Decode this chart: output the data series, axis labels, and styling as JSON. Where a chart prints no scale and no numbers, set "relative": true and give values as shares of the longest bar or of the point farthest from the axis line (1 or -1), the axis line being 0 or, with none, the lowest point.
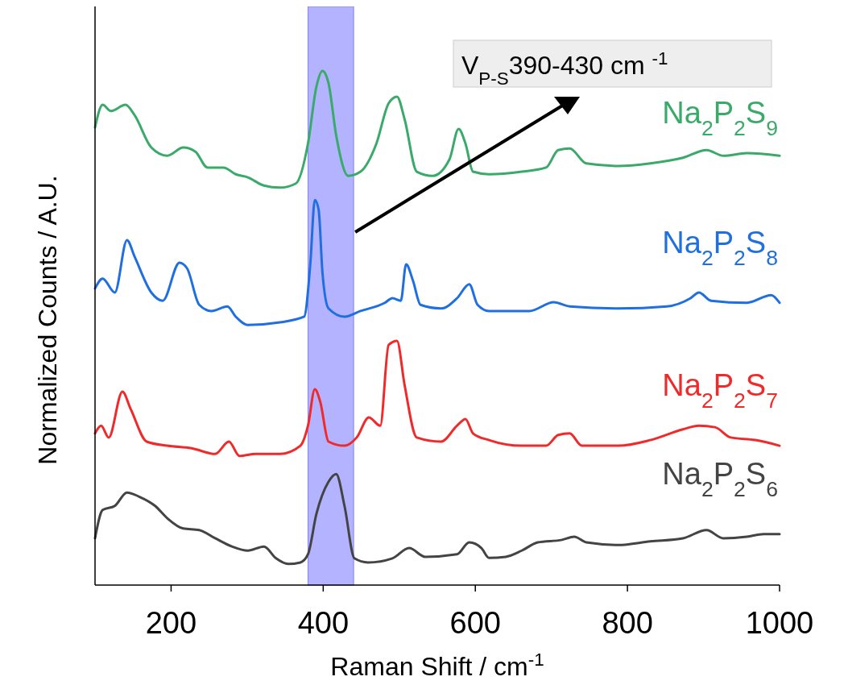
{
  "chart_data": {
    "type": "line",
    "relative": true,
    "xlabel": "Raman Shift / cm$^{-1}$",
    "ylabel": "Normalized Counts / A.U.",
    "xlim": [
      100,
      1000
    ],
    "xticks": [
      200,
      400,
      600,
      800,
      1000
    ],
    "grid": false,
    "tick_labels": "x",
    "bands": [
      {
        "axis": "x",
        "from": 380,
        "to": 440,
        "label": "V$_{P-S}$390-430 cm $^{-1}$",
        "color": "#8080ff"
      }
    ],
    "series": [
      {
        "name": "Na$_{2}$P$_{2}$S$_{9}$",
        "color": "#3aaa6a",
        "x": [
          100,
          110,
          121,
          140,
          152,
          174,
          195,
          216,
          232,
          248,
          269,
          285,
          301,
          322,
          343,
          364,
          380,
          391,
          399,
          407,
          417,
          433,
          449,
          470,
          486,
          497,
          507,
          523,
          544,
          566,
          578,
          587,
          597,
          618,
          661,
          693,
          709,
          724,
          746,
          788,
          830,
          873,
          904,
          926,
          957,
          1000
        ],
        "values": [
          0.89,
          0.934,
          0.922,
          0.934,
          0.914,
          0.851,
          0.835,
          0.851,
          0.843,
          0.812,
          0.812,
          0.799,
          0.793,
          0.777,
          0.773,
          0.781,
          0.859,
          0.969,
          1.0,
          0.976,
          0.875,
          0.796,
          0.804,
          0.859,
          0.937,
          0.95,
          0.906,
          0.804,
          0.796,
          0.828,
          0.887,
          0.859,
          0.804,
          0.799,
          0.804,
          0.812,
          0.846,
          0.849,
          0.82,
          0.815,
          0.82,
          0.831,
          0.846,
          0.835,
          0.84,
          0.835
        ]
      },
      {
        "name": "Na$_{2}$P$_{2}$S$_{8}$",
        "color": "#1f6fe0",
        "x": [
          100,
          110,
          126,
          142,
          152,
          174,
          189,
          211,
          221,
          237,
          253,
          274,
          285,
          301,
          343,
          375,
          383,
          389,
          394,
          399,
          407,
          428,
          449,
          481,
          491,
          502,
          509,
          518,
          528,
          555,
          576,
          592,
          603,
          618,
          671,
          703,
          724,
          788,
          852,
          883,
          894,
          910,
          957,
          989,
          1000
        ],
        "values": [
          0.577,
          0.596,
          0.569,
          0.671,
          0.639,
          0.569,
          0.553,
          0.627,
          0.616,
          0.545,
          0.533,
          0.542,
          0.522,
          0.506,
          0.511,
          0.522,
          0.624,
          0.749,
          0.73,
          0.608,
          0.538,
          0.522,
          0.533,
          0.549,
          0.558,
          0.553,
          0.624,
          0.592,
          0.545,
          0.538,
          0.558,
          0.585,
          0.545,
          0.533,
          0.533,
          0.55,
          0.542,
          0.538,
          0.542,
          0.558,
          0.569,
          0.553,
          0.549,
          0.564,
          0.549
        ]
      },
      {
        "name": "Na$_{2}$P$_{2}$S$_{7}$",
        "color": "#f02a2a",
        "x": [
          100,
          108,
          118,
          136,
          147,
          168,
          195,
          227,
          258,
          276,
          290,
          311,
          343,
          370,
          380,
          389,
          396,
          407,
          428,
          444,
          460,
          475,
          486,
          497,
          507,
          523,
          555,
          576,
          587,
          597,
          618,
          661,
          693,
          709,
          724,
          740,
          788,
          830,
          873,
          894,
          915,
          936,
          968,
          1000
        ],
        "values": [
          0.295,
          0.31,
          0.287,
          0.376,
          0.342,
          0.279,
          0.271,
          0.266,
          0.255,
          0.279,
          0.251,
          0.255,
          0.255,
          0.271,
          0.31,
          0.381,
          0.357,
          0.279,
          0.271,
          0.287,
          0.326,
          0.31,
          0.467,
          0.475,
          0.389,
          0.287,
          0.279,
          0.31,
          0.323,
          0.295,
          0.282,
          0.271,
          0.271,
          0.292,
          0.295,
          0.271,
          0.271,
          0.282,
          0.303,
          0.31,
          0.307,
          0.287,
          0.282,
          0.271
        ]
      },
      {
        "name": "Na$_{2}$P$_{2}$S$_{6}$",
        "color": "#444444",
        "x": [
          100,
          110,
          126,
          142,
          158,
          179,
          195,
          216,
          237,
          258,
          280,
          301,
          322,
          338,
          354,
          370,
          380,
          391,
          407,
          417,
          428,
          441,
          459,
          491,
          513,
          534,
          576,
          592,
          608,
          618,
          640,
          661,
          682,
          714,
          730,
          746,
          788,
          830,
          873,
          904,
          926,
          957,
          979,
          1000
        ],
        "values": [
          0.091,
          0.146,
          0.154,
          0.18,
          0.172,
          0.154,
          0.13,
          0.11,
          0.107,
          0.091,
          0.075,
          0.067,
          0.075,
          0.052,
          0.041,
          0.044,
          0.06,
          0.138,
          0.201,
          0.216,
          0.154,
          0.052,
          0.044,
          0.052,
          0.072,
          0.055,
          0.06,
          0.083,
          0.072,
          0.053,
          0.055,
          0.067,
          0.083,
          0.088,
          0.094,
          0.083,
          0.078,
          0.085,
          0.091,
          0.107,
          0.091,
          0.094,
          0.099,
          0.099
        ]
      }
    ]
  }
}
